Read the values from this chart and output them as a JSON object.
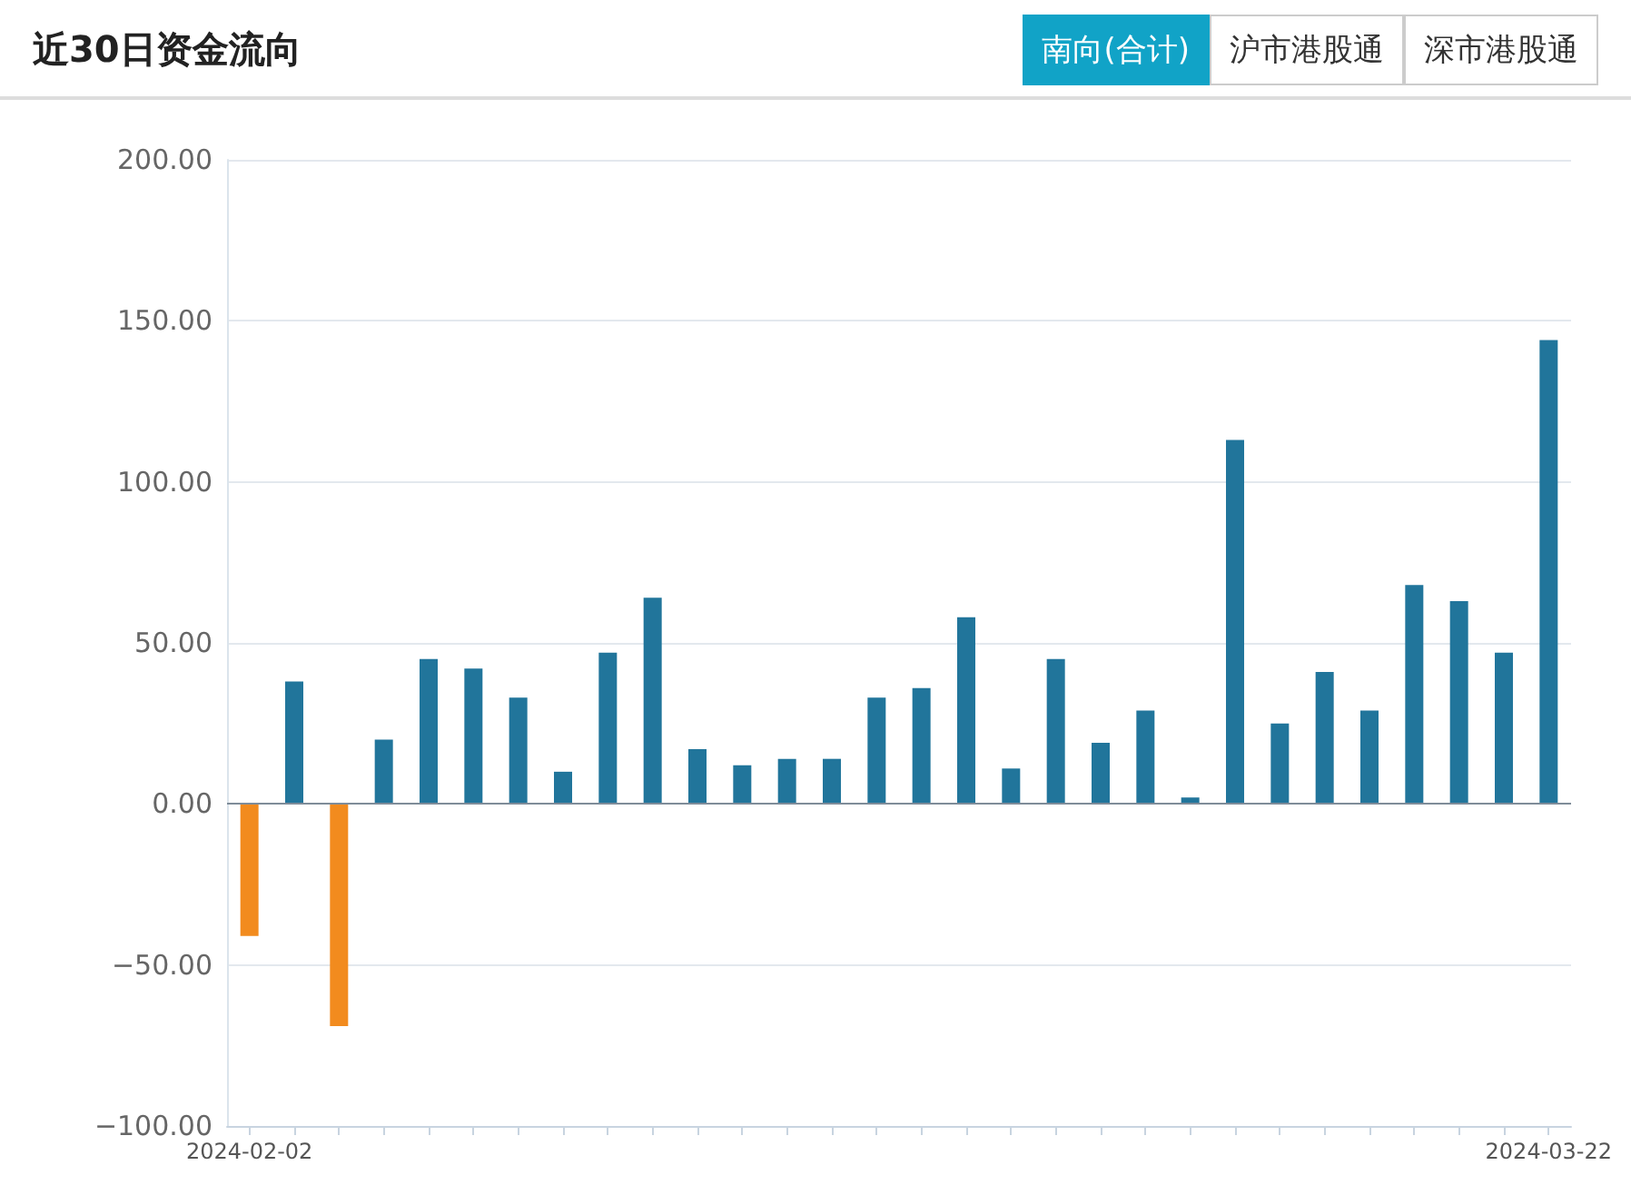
{
  "chart_data": {
    "type": "bar",
    "title": "近30日资金流向",
    "annotations": [
      "南向(合计)",
      "沪市港股通",
      "深市港股通"
    ],
    "categories": [
      "2024-02-02",
      null,
      null,
      null,
      null,
      null,
      null,
      null,
      null,
      null,
      null,
      null,
      null,
      null,
      null,
      null,
      null,
      null,
      null,
      null,
      null,
      null,
      null,
      null,
      null,
      null,
      null,
      null,
      null,
      "2024-03-22"
    ],
    "values": [
      -41,
      38,
      -69,
      20,
      45,
      42,
      33,
      10,
      47,
      64,
      17,
      12,
      14,
      14,
      33,
      36,
      58,
      11,
      45,
      19,
      29,
      2,
      113,
      25,
      41,
      29,
      68,
      63,
      47,
      144
    ],
    "colors": [
      "#f28b1e",
      "#21759b",
      "#f28b1e",
      "#21759b",
      "#21759b",
      "#21759b",
      "#21759b",
      "#21759b",
      "#21759b",
      "#21759b",
      "#21759b",
      "#21759b",
      "#21759b",
      "#21759b",
      "#21759b",
      "#21759b",
      "#21759b",
      "#21759b",
      "#21759b",
      "#21759b",
      "#21759b",
      "#21759b",
      "#21759b",
      "#21759b",
      "#21759b",
      "#21759b",
      "#21759b",
      "#21759b",
      "#21759b",
      "#21759b"
    ],
    "ylim": [
      -100,
      200
    ],
    "yticks": [
      {
        "value": -100,
        "label": "−100.00"
      },
      {
        "value": -50,
        "label": "−50.00"
      },
      {
        "value": 0,
        "label": "0.00"
      },
      {
        "value": 50,
        "label": "50.00"
      },
      {
        "value": 100,
        "label": "100.00"
      },
      {
        "value": 150,
        "label": "150.00"
      },
      {
        "value": 200,
        "label": "200.00"
      }
    ],
    "grid": "y"
  }
}
